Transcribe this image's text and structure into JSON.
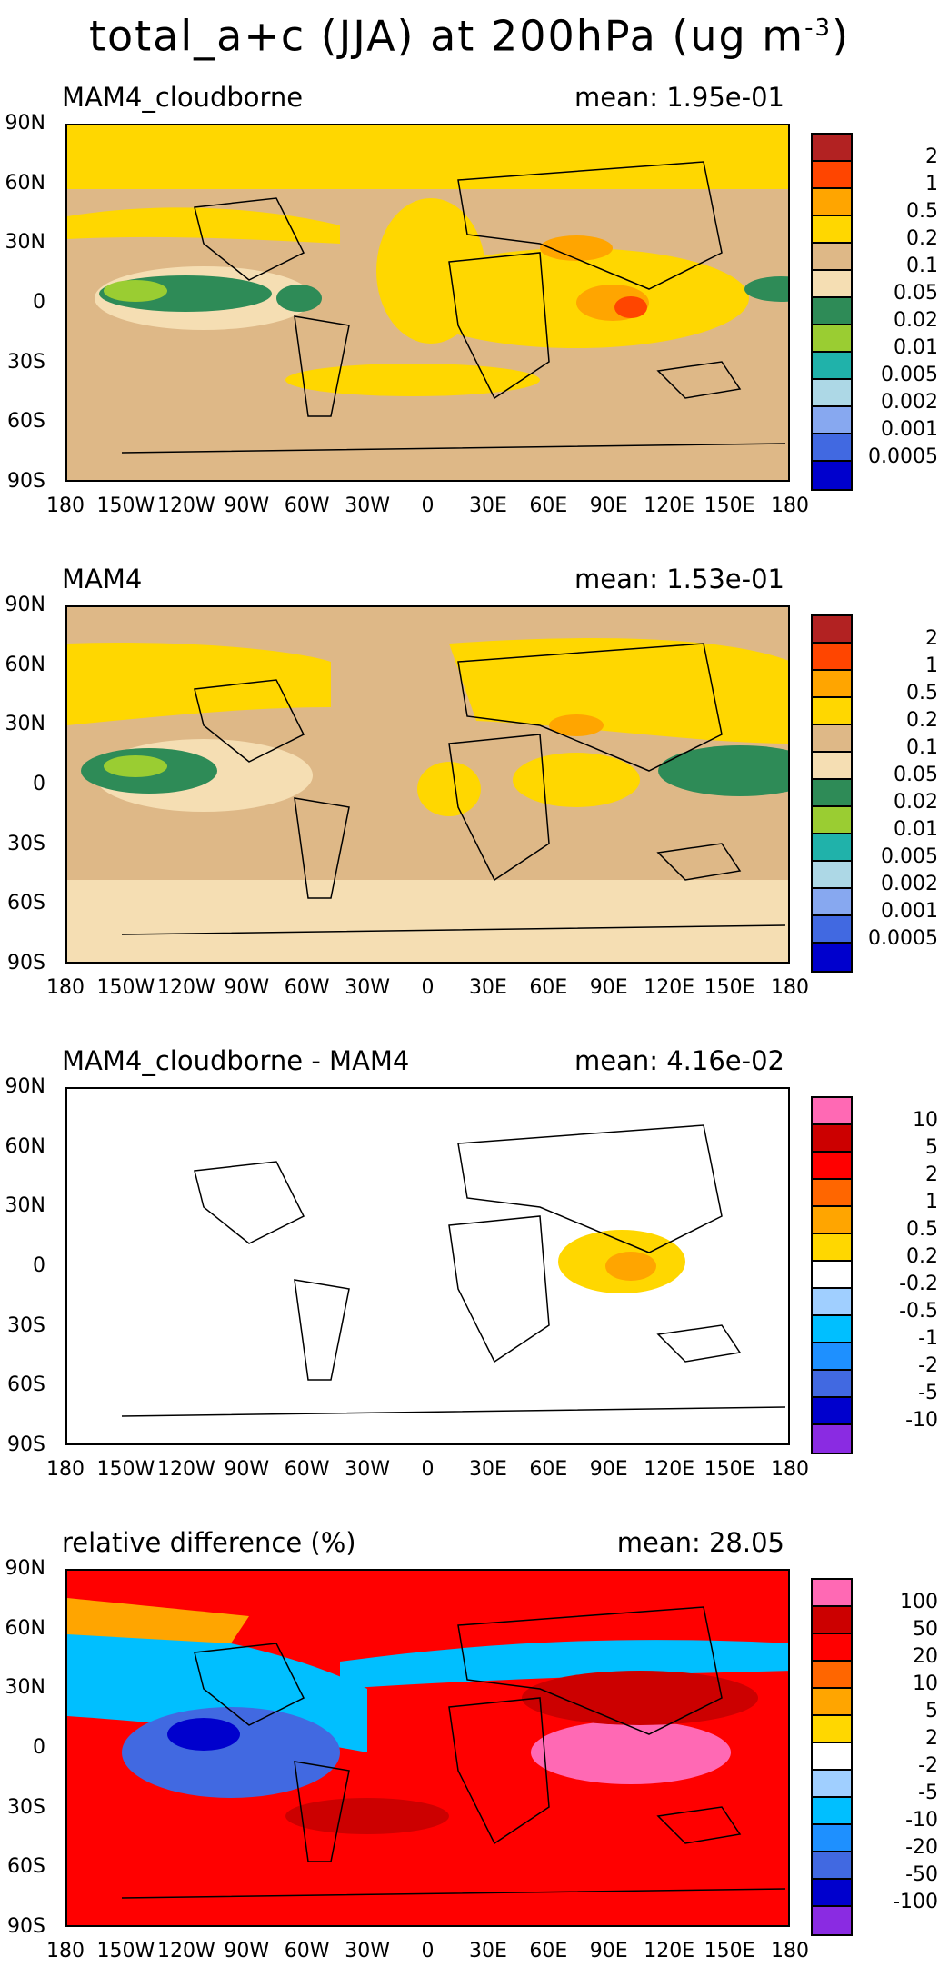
{
  "title": "total_a+c (JJA) at 200hPa (ug m",
  "title_exponent": "-3",
  "title_close": ")",
  "lat_labels": [
    "90N",
    "60N",
    "30N",
    "0",
    "30S",
    "60S",
    "90S"
  ],
  "lon_labels": [
    "180",
    "150W",
    "120W",
    "90W",
    "60W",
    "30W",
    "0",
    "30E",
    "60E",
    "90E",
    "120E",
    "150E",
    "180"
  ],
  "panels": [
    {
      "title": "MAM4_cloudborne",
      "mean": "mean: 1.95e-01",
      "levels": [
        "2",
        "1",
        "0.5",
        "0.2",
        "0.1",
        "0.05",
        "0.02",
        "0.01",
        "0.005",
        "0.002",
        "0.001",
        "0.0005"
      ],
      "colors": [
        "#b22222",
        "#ff4500",
        "#ffa500",
        "#ffd700",
        "#deb887",
        "#f5deb3",
        "#2e8b57",
        "#9acd32",
        "#20b2aa",
        "#add8e6",
        "#87a8f0",
        "#4169e1",
        "#0000cd"
      ]
    },
    {
      "title": "MAM4",
      "mean": "mean: 1.53e-01",
      "levels": [
        "2",
        "1",
        "0.5",
        "0.2",
        "0.1",
        "0.05",
        "0.02",
        "0.01",
        "0.005",
        "0.002",
        "0.001",
        "0.0005"
      ],
      "colors": [
        "#b22222",
        "#ff4500",
        "#ffa500",
        "#ffd700",
        "#deb887",
        "#f5deb3",
        "#2e8b57",
        "#9acd32",
        "#20b2aa",
        "#add8e6",
        "#87a8f0",
        "#4169e1",
        "#0000cd"
      ]
    },
    {
      "title": "MAM4_cloudborne - MAM4",
      "mean": "mean: 4.16e-02",
      "levels": [
        "10",
        "5",
        "2",
        "1",
        "0.5",
        "0.2",
        "-0.2",
        "-0.5",
        "-1",
        "-2",
        "-5",
        "-10"
      ],
      "colors": [
        "#ff69b4",
        "#cc0000",
        "#ff0000",
        "#ff6600",
        "#ffa500",
        "#ffd700",
        "#ffffff",
        "#a0cfff",
        "#00bfff",
        "#1e90ff",
        "#4169e1",
        "#0000cd",
        "#8a2be2"
      ]
    },
    {
      "title": "relative difference (%)",
      "mean": "mean: 28.05",
      "levels": [
        "100",
        "50",
        "20",
        "10",
        "5",
        "2",
        "-2",
        "-5",
        "-10",
        "-20",
        "-50",
        "-100"
      ],
      "colors": [
        "#ff69b4",
        "#cc0000",
        "#ff0000",
        "#ff6600",
        "#ffa500",
        "#ffd700",
        "#ffffff",
        "#a0cfff",
        "#00bfff",
        "#1e90ff",
        "#4169e1",
        "#0000cd",
        "#8a2be2"
      ]
    }
  ]
}
